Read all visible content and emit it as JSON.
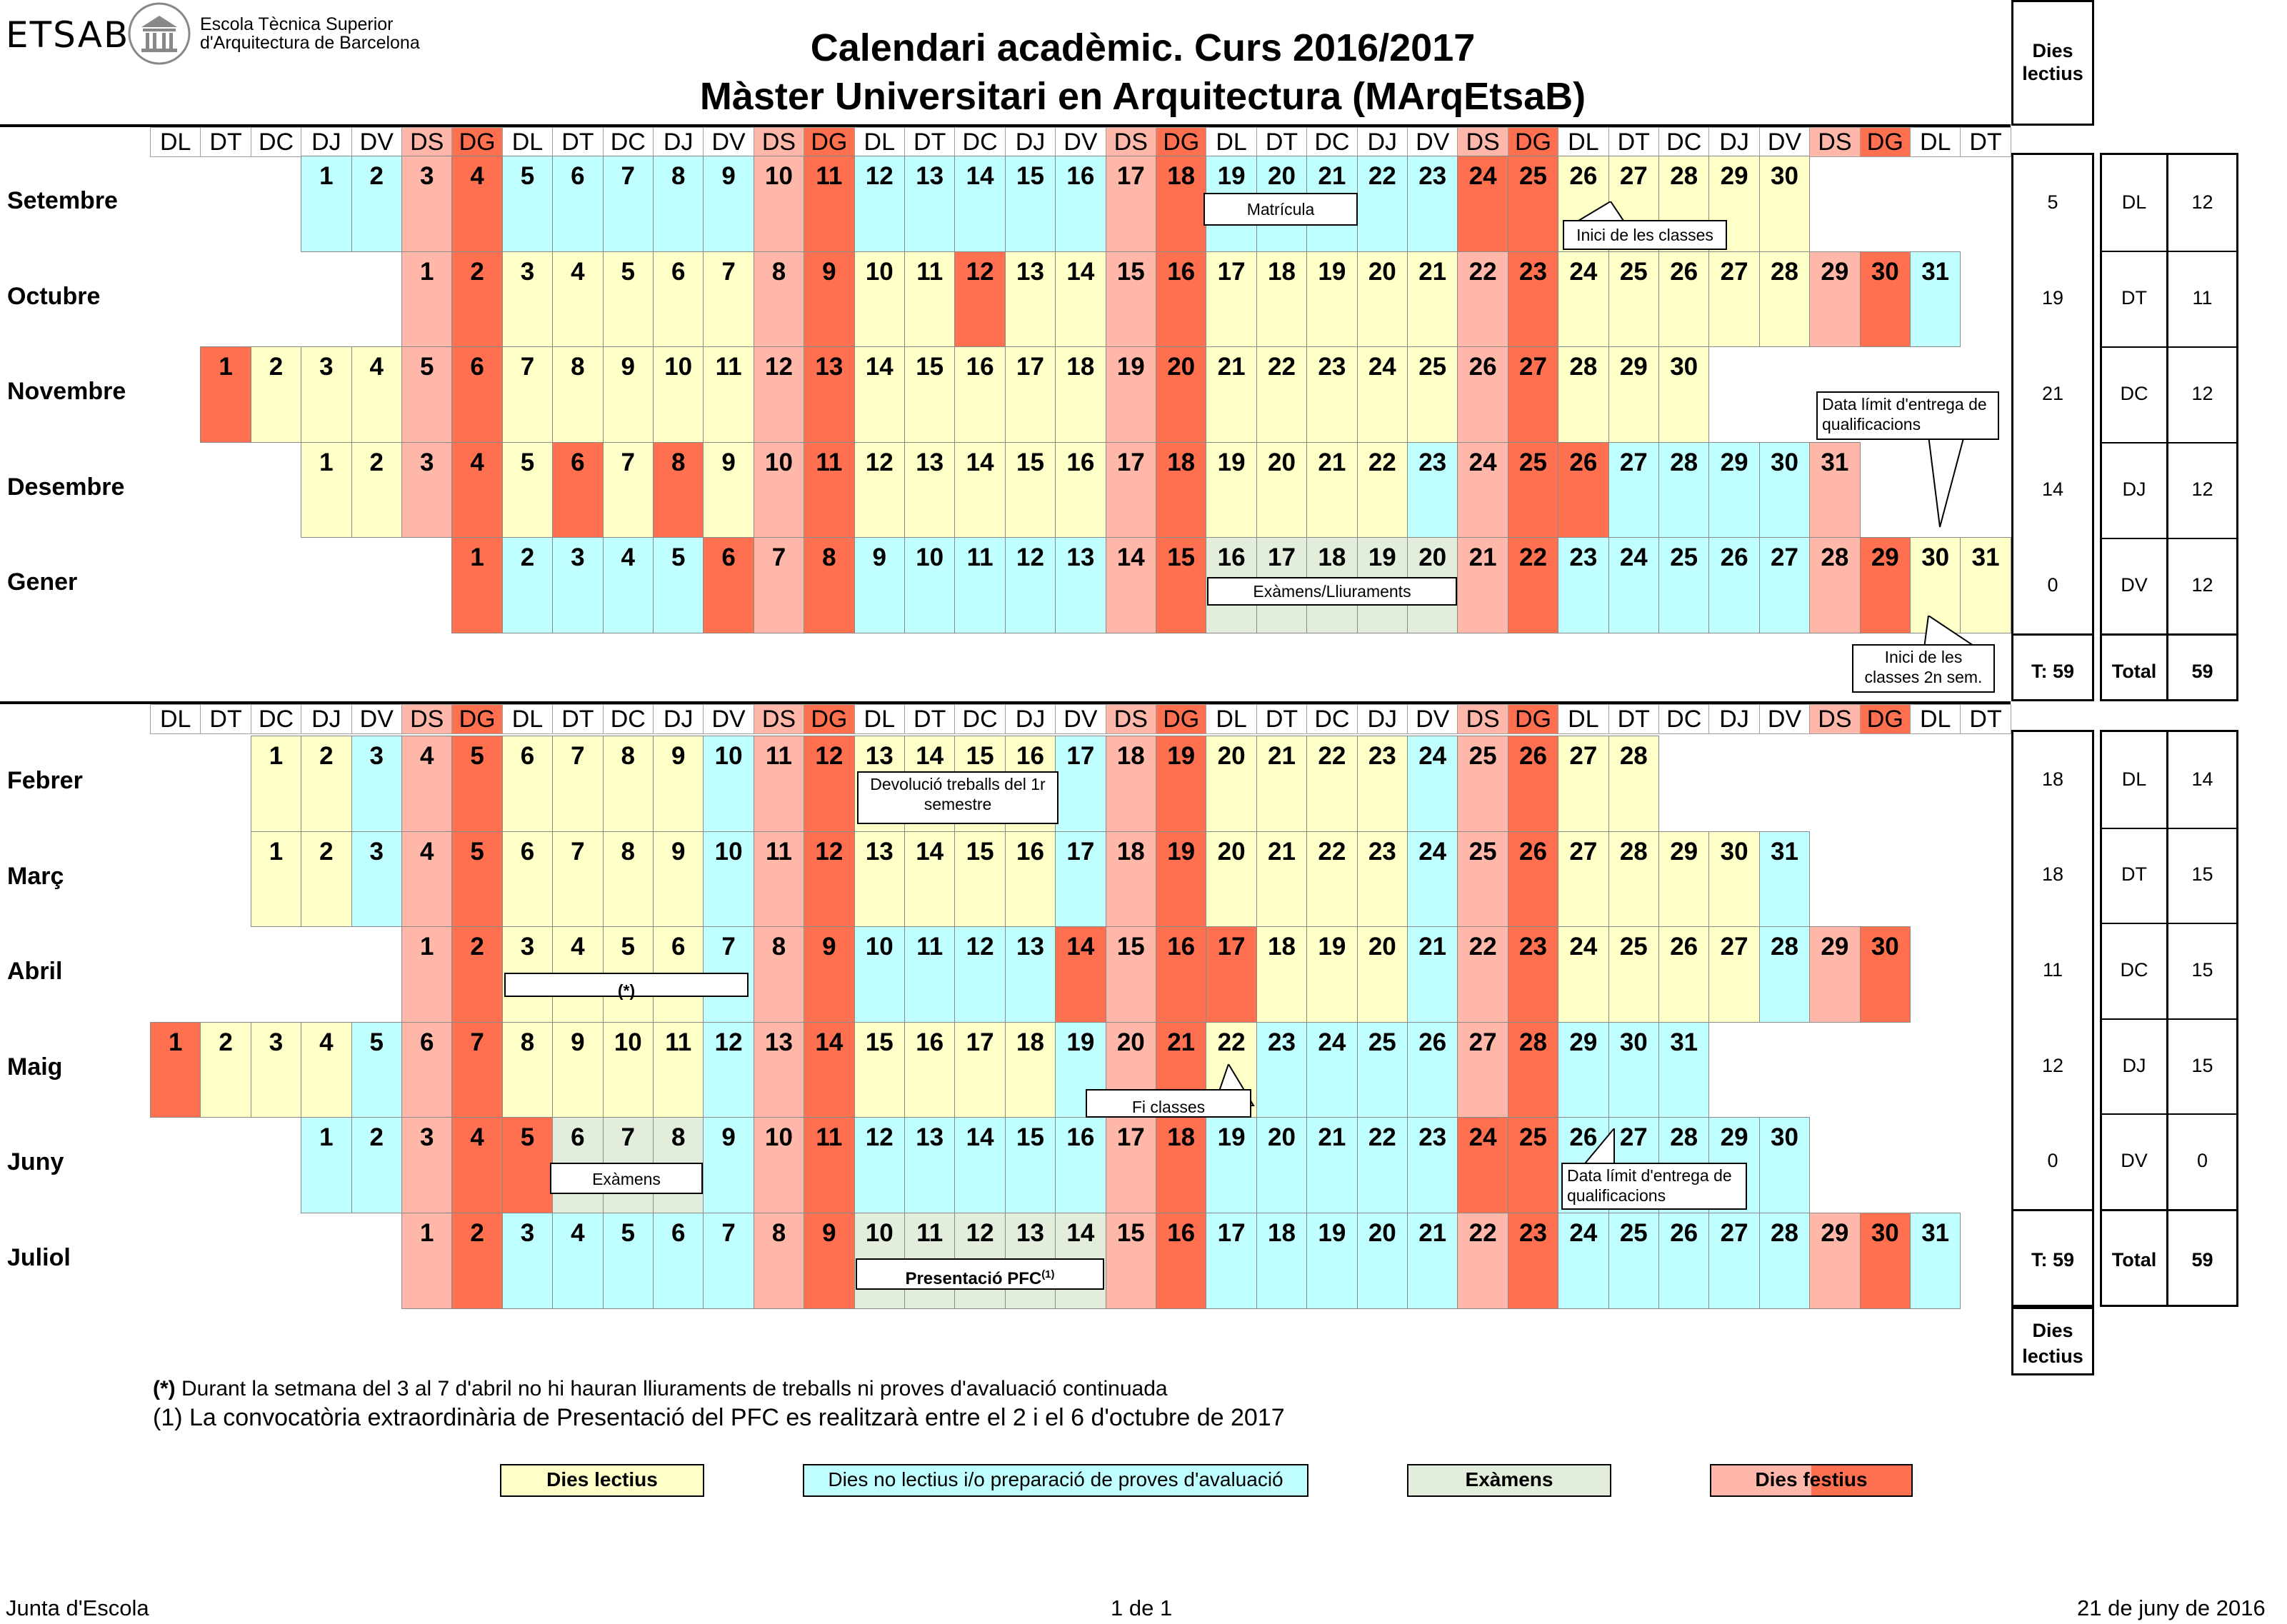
{
  "logo": {
    "text": "ETSAB",
    "line1": "Escola Tècnica Superior",
    "line2": "d'Arquitectura de Barcelona"
  },
  "title": {
    "line1": "Calendari acadèmic. Curs 2016/2017",
    "line2": "Màster Universitari en  Arquitectura (MArqEtsaB)"
  },
  "day_headers": [
    "DL",
    "DT",
    "DC",
    "DJ",
    "DV",
    "DS",
    "DG",
    "DL",
    "DT",
    "DC",
    "DJ",
    "DV",
    "DS",
    "DG",
    "DL",
    "DT",
    "DC",
    "DJ",
    "DV",
    "DS",
    "DG",
    "DL",
    "DT",
    "DC",
    "DJ",
    "DV",
    "DS",
    "DG",
    "DL",
    "DT",
    "DC",
    "DJ",
    "DV",
    "DS",
    "DG",
    "DL",
    "DT"
  ],
  "colors": {
    "lectiu": "#ffffc8",
    "no_lectiu": "#c0ffff",
    "examen": "#e2eedb",
    "dissabte": "#ffb7aa",
    "festiu": "#ff7050"
  },
  "semester1": {
    "months": [
      {
        "name": "Setembre",
        "start": 3,
        "days": [
          1,
          2,
          3,
          4,
          5,
          6,
          7,
          8,
          9,
          10,
          11,
          12,
          13,
          14,
          15,
          16,
          17,
          18,
          19,
          20,
          21,
          22,
          23,
          24,
          25,
          26,
          27,
          28,
          29,
          30
        ],
        "types": "nnsfnnnnnsfnnnnnsfnnnnnffllll"
      },
      {
        "name": "Octubre",
        "start": 5,
        "days": [
          1,
          2,
          3,
          4,
          5,
          6,
          7,
          8,
          9,
          10,
          11,
          12,
          13,
          14,
          15,
          16,
          17,
          18,
          19,
          20,
          21,
          22,
          23,
          24,
          25,
          26,
          27,
          28,
          29,
          30,
          31
        ],
        "types": "sfllllls"
      },
      {
        "name": "Novembre",
        "start": 1,
        "days": [
          1,
          2,
          3,
          4,
          5,
          6,
          7,
          8,
          9,
          10,
          11,
          12,
          13,
          14,
          15,
          16,
          17,
          18,
          19,
          20,
          21,
          22,
          23,
          24,
          25,
          26,
          27,
          28,
          29,
          30
        ],
        "types": ""
      },
      {
        "name": "Desembre",
        "start": 3,
        "days": [
          1,
          2,
          3,
          4,
          5,
          6,
          7,
          8,
          9,
          10,
          11,
          12,
          13,
          14,
          15,
          16,
          17,
          18,
          19,
          20,
          21,
          22,
          23,
          24,
          25,
          26,
          27,
          28,
          29,
          30,
          31
        ],
        "types": ""
      },
      {
        "name": "Gener",
        "start": 6,
        "days": [
          1,
          2,
          3,
          4,
          5,
          6,
          7,
          8,
          9,
          10,
          11,
          12,
          13,
          14,
          15,
          16,
          17,
          18,
          19,
          20,
          21,
          22,
          23,
          24,
          25,
          26,
          27,
          28,
          29,
          30,
          31
        ],
        "types": ""
      }
    ],
    "summary": {
      "header": "Dies lectius",
      "counts": [
        "5",
        "19",
        "21",
        "14",
        "0"
      ],
      "total_label": "T: 59",
      "rows": [
        [
          "DL",
          "12"
        ],
        [
          "DT",
          "11"
        ],
        [
          "DC",
          "12"
        ],
        [
          "DJ",
          "12"
        ],
        [
          "DV",
          "12"
        ]
      ],
      "total_row": [
        "Total",
        "59"
      ]
    }
  },
  "semester2": {
    "months": [
      {
        "name": "Febrer",
        "start": 2,
        "days": [
          1,
          2,
          3,
          4,
          5,
          6,
          7,
          8,
          9,
          10,
          11,
          12,
          13,
          14,
          15,
          16,
          17,
          18,
          19,
          20,
          21,
          22,
          23,
          24,
          25,
          26,
          27,
          28
        ]
      },
      {
        "name": "Març",
        "start": 2,
        "days": [
          1,
          2,
          3,
          4,
          5,
          6,
          7,
          8,
          9,
          10,
          11,
          12,
          13,
          14,
          15,
          16,
          17,
          18,
          19,
          20,
          21,
          22,
          23,
          24,
          25,
          26,
          27,
          28,
          29,
          30,
          31
        ]
      },
      {
        "name": "Abril",
        "start": 5,
        "days": [
          1,
          2,
          3,
          4,
          5,
          6,
          7,
          8,
          9,
          10,
          11,
          12,
          13,
          14,
          15,
          16,
          17,
          18,
          19,
          20,
          21,
          22,
          23,
          24,
          25,
          26,
          27,
          28,
          29,
          30
        ]
      },
      {
        "name": "Maig",
        "start": 0,
        "days": [
          1,
          2,
          3,
          4,
          5,
          6,
          7,
          8,
          9,
          10,
          11,
          12,
          13,
          14,
          15,
          16,
          17,
          18,
          19,
          20,
          21,
          22,
          23,
          24,
          25,
          26,
          27,
          28,
          29,
          30,
          31
        ]
      },
      {
        "name": "Juny",
        "start": 3,
        "days": [
          1,
          2,
          3,
          4,
          5,
          6,
          7,
          8,
          9,
          10,
          11,
          12,
          13,
          14,
          15,
          16,
          17,
          18,
          19,
          20,
          21,
          22,
          23,
          24,
          25,
          26,
          27,
          28,
          29,
          30
        ]
      },
      {
        "name": "Juliol",
        "start": 5,
        "days": [
          1,
          2,
          3,
          4,
          5,
          6,
          7,
          8,
          9,
          10,
          11,
          12,
          13,
          14,
          15,
          16,
          17,
          18,
          19,
          20,
          21,
          22,
          23,
          24,
          25,
          26,
          27,
          28,
          29,
          30,
          31
        ]
      }
    ],
    "summary": {
      "counts": [
        "18",
        "18",
        "11",
        "12",
        "0"
      ],
      "total_label": "T: 59",
      "rows": [
        [
          "DL",
          "14"
        ],
        [
          "DT",
          "15"
        ],
        [
          "DC",
          "15"
        ],
        [
          "DJ",
          "15"
        ],
        [
          "DV",
          "0"
        ]
      ],
      "total_row": [
        "Total",
        "59"
      ],
      "footer": "Dies lectius"
    }
  },
  "callouts": {
    "matricula": "Matrícula",
    "inici_classes": "Inici de les classes",
    "data_limit_1": "Data límit d'entrega de qualificacions",
    "examens_lliuraments": "Exàmens/Lliuraments",
    "inici_2n": "Inici de les classes 2n sem.",
    "devolucio": "Devolució treballs del 1r semestre",
    "asterisk": "(*)",
    "fi_classes": "Fi classes",
    "examens": "Exàmens",
    "data_limit_2": "Data límit d'entrega de qualificacions",
    "presentacio": "Presentació PFC",
    "presentacio_sup": "(1)"
  },
  "notes": {
    "note1_mark": "(*)",
    "note1": " Durant la setmana del 3 al 7 d'abril no hi hauran lliuraments de treballs ni proves d'avaluació continuada",
    "note2": "(1) La convocatòria extraordinària de Presentació del PFC es realitzarà entre el 2 i el 6 d'octubre de 2017"
  },
  "legend": {
    "lectius": "Dies lectius",
    "no_lectius": "Dies no lectius i/o preparació de proves d'avaluació",
    "examens": "Exàmens",
    "festius_a": "Dies ",
    "festius_b": "festius"
  },
  "footer": {
    "left": "Junta d'Escola",
    "center": "1 de 1",
    "right": "21 de juny de 2016"
  }
}
